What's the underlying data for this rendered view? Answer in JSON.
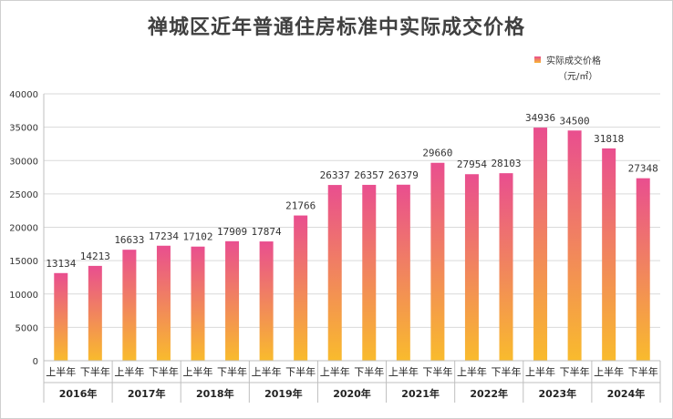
{
  "chart_data": {
    "type": "bar",
    "title": "禅城区近年普通住房标准中实际成交价格",
    "legend": {
      "label": "实际成交价格",
      "unit": "（元/㎡）",
      "placement": "top-right"
    },
    "ylim": [
      0,
      40000
    ],
    "yticks": [
      0,
      5000,
      10000,
      15000,
      20000,
      25000,
      30000,
      35000,
      40000
    ],
    "grid": true,
    "categories": [
      "上半年",
      "下半年",
      "上半年",
      "下半年",
      "上半年",
      "下半年",
      "上半年",
      "下半年",
      "上半年",
      "下半年",
      "上半年",
      "下半年",
      "上半年",
      "下半年",
      "上半年",
      "下半年",
      "上半年",
      "下半年"
    ],
    "groups": [
      "2016年",
      "2017年",
      "2018年",
      "2019年",
      "2020年",
      "2021年",
      "2022年",
      "2023年",
      "2024年"
    ],
    "series": [
      {
        "values": [
          13134,
          14213,
          16633,
          17234,
          17102,
          17909,
          17874,
          21766,
          26337,
          26357,
          26379,
          29660,
          27954,
          28103,
          34936,
          34500,
          31818,
          27348
        ]
      }
    ],
    "colors": {
      "bar_top": "#e94e8f",
      "bar_bottom": "#f9bb2d",
      "grid": "#d9d9d9",
      "axis": "#bfbfbf"
    }
  }
}
